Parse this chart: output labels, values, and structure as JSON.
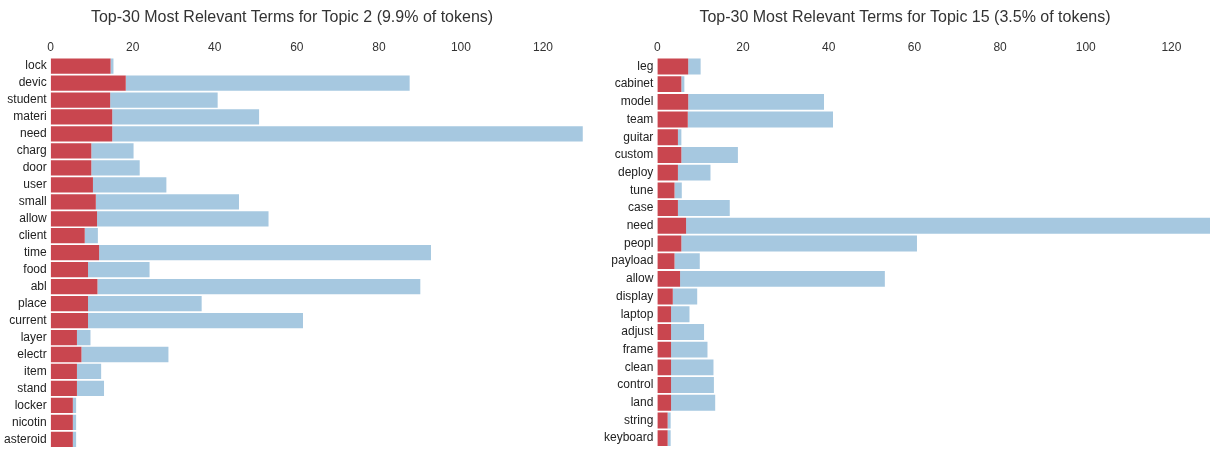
{
  "chart_data": [
    {
      "type": "bar",
      "orientation": "horizontal",
      "title": "Top-30 Most Relevant Terms for Topic 2 (9.9% of tokens)",
      "categories": [
        "lock",
        "devic",
        "student",
        "materi",
        "need",
        "charg",
        "door",
        "user",
        "small",
        "allow",
        "client",
        "time",
        "food",
        "abl",
        "place",
        "current",
        "layer",
        "electr",
        "item",
        "stand",
        "locker",
        "nicotin",
        "asteroid"
      ],
      "series": [
        {
          "color": "#c9464f",
          "values": [
            14.6,
            18.3,
            14.5,
            15.0,
            15.0,
            9.9,
            9.9,
            10.3,
            11.0,
            11.3,
            8.3,
            11.8,
            9.1,
            11.4,
            9.1,
            9.1,
            6.4,
            7.5,
            6.4,
            6.4,
            5.4,
            5.4,
            5.4
          ]
        },
        {
          "color": "#a6c8e0",
          "values": [
            0.7,
            69.2,
            26.2,
            35.8,
            114.7,
            10.3,
            11.8,
            17.9,
            34.9,
            41.8,
            3.2,
            80.9,
            15.0,
            78.7,
            27.7,
            52.4,
            3.3,
            21.2,
            5.9,
            6.6,
            0.8,
            0.8,
            0.8
          ]
        }
      ],
      "stacked": true,
      "xlim": [
        0,
        130
      ],
      "xticks": [
        0,
        20,
        40,
        60,
        80,
        100,
        120
      ],
      "grid": false,
      "legend": false
    },
    {
      "type": "bar",
      "orientation": "horizontal",
      "title": "Top-30 Most Relevant Terms for Topic 15 (3.5% of tokens)",
      "categories": [
        "leg",
        "cabinet",
        "model",
        "team",
        "guitar",
        "custom",
        "deploy",
        "tune",
        "case",
        "need",
        "peopl",
        "payload",
        "allow",
        "display",
        "laptop",
        "adjust",
        "frame",
        "clean",
        "control",
        "land",
        "string",
        "keyboard"
      ],
      "series": [
        {
          "color": "#c9464f",
          "values": [
            7.2,
            5.6,
            7.2,
            7.1,
            4.8,
            5.6,
            4.8,
            4.0,
            4.8,
            6.7,
            5.6,
            4.0,
            5.3,
            3.6,
            3.2,
            3.2,
            3.2,
            3.2,
            3.2,
            3.2,
            2.4,
            2.4
          ]
        },
        {
          "color": "#a6c8e0",
          "values": [
            2.9,
            0.7,
            31.7,
            33.9,
            0.8,
            13.2,
            7.6,
            1.7,
            12.1,
            122.3,
            55.0,
            5.9,
            47.8,
            5.7,
            4.3,
            7.7,
            8.5,
            9.9,
            10.0,
            10.3,
            0.7,
            0.7
          ]
        }
      ],
      "stacked": true,
      "xlim": [
        0,
        129
      ],
      "xticks": [
        0,
        20,
        40,
        60,
        80,
        100,
        120
      ],
      "grid": false,
      "legend": false
    }
  ]
}
